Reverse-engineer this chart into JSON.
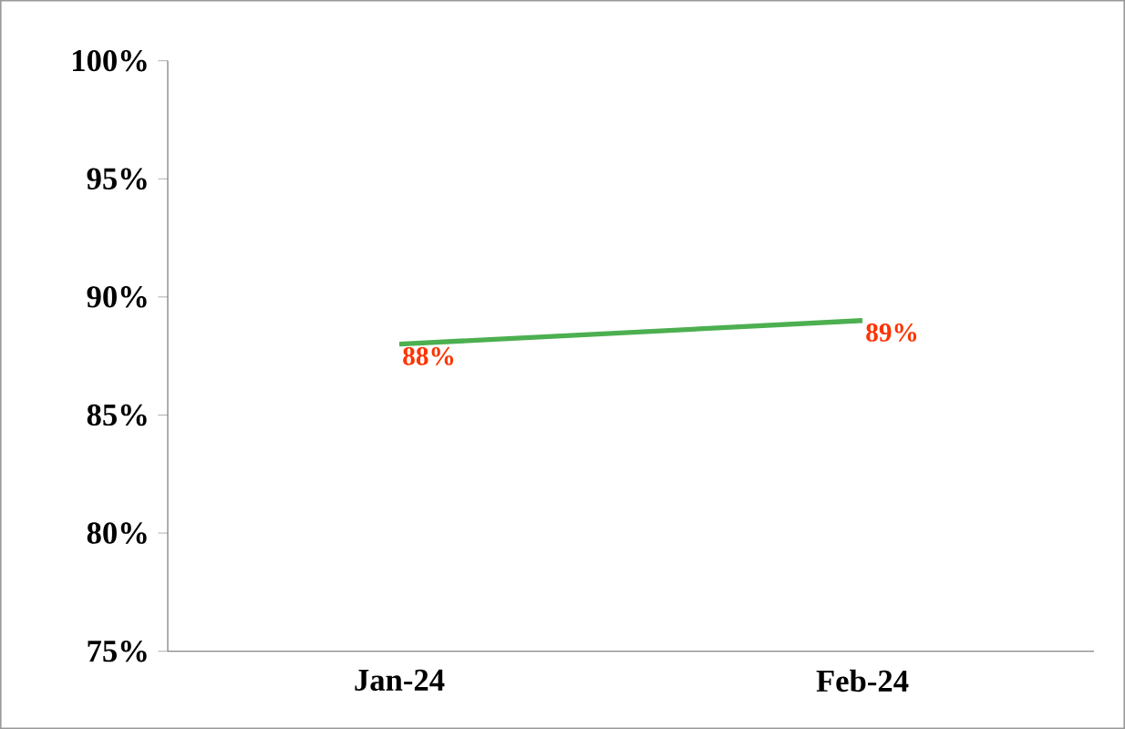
{
  "chart_data": {
    "type": "line",
    "categories": [
      "Jan-24",
      "Feb-24"
    ],
    "series": [
      {
        "color": "#4caf50",
        "values": [
          88,
          89
        ],
        "value_labels": [
          "88%",
          "89%"
        ]
      }
    ],
    "ylim": [
      75,
      100
    ],
    "yticks": [
      {
        "value": 75,
        "label": "75%"
      },
      {
        "value": 80,
        "label": "80%"
      },
      {
        "value": 85,
        "label": "85%"
      },
      {
        "value": 90,
        "label": "90%"
      },
      {
        "value": 95,
        "label": "95%"
      },
      {
        "value": 100,
        "label": "100%"
      }
    ],
    "grid": false,
    "marker": "none",
    "line_style": "solid"
  }
}
